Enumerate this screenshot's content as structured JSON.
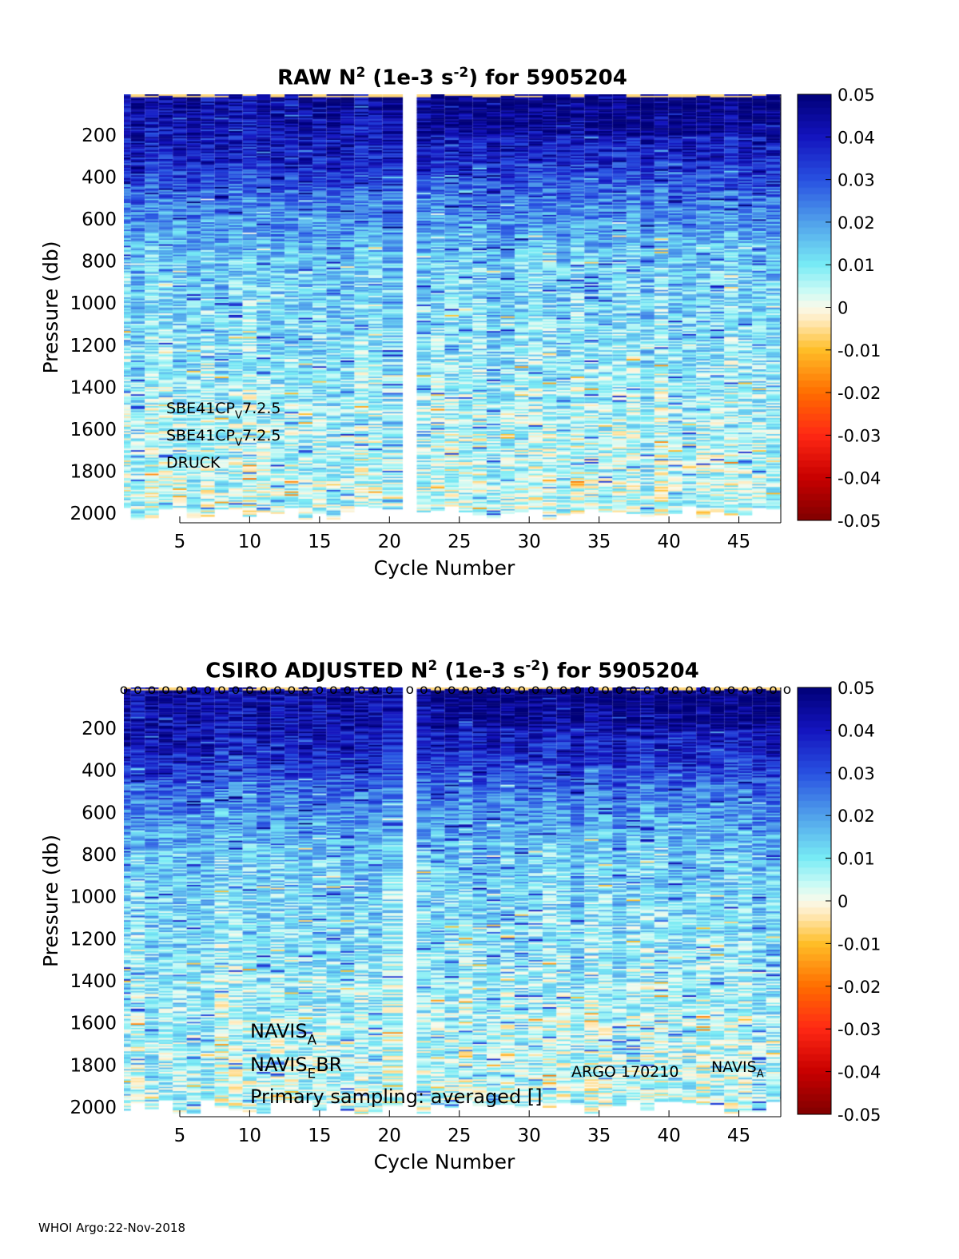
{
  "footer": "WHOI Argo:22-Nov-2018",
  "chart_data": [
    {
      "type": "heatmap",
      "title": "RAW N² (1e-3 s⁻²) for 5905204",
      "title_parts": {
        "main": "RAW N",
        "sup1": "2",
        "mid": " (1e-3 s",
        "sup2": "-2",
        "end": ") for 5905204"
      },
      "xlabel": "Cycle Number",
      "ylabel": "Pressure (db)",
      "xlim": [
        1,
        48
      ],
      "ylim": [
        2034,
        6
      ],
      "y_reversed": true,
      "xticks": [
        5,
        10,
        15,
        20,
        25,
        30,
        35,
        40,
        45
      ],
      "yticks": [
        200,
        400,
        600,
        800,
        1000,
        1200,
        1400,
        1600,
        1800,
        2000
      ],
      "missing_cycles": [
        21
      ],
      "clim": [
        -0.05,
        0.05
      ],
      "colorbar_ticks": [
        "0.05",
        "0.04",
        "0.03",
        "0.02",
        "0.01",
        "0",
        "-0.01",
        "-0.02",
        "-0.03",
        "-0.04",
        "-0.05"
      ],
      "approx_profile": {
        "pressure": [
          20,
          100,
          300,
          500,
          800,
          1200,
          1600,
          2000
        ],
        "n2": [
          0.045,
          0.042,
          0.038,
          0.025,
          0.014,
          0.01,
          0.006,
          0.004
        ]
      },
      "annotations": [
        {
          "main": "SBE41CP",
          "sub": "V",
          "end": "7.2.5"
        },
        {
          "main": "SBE41CP",
          "sub": "V",
          "end": "7.2.5"
        },
        {
          "main": "DRUCK",
          "sub": "",
          "end": ""
        }
      ],
      "markers": false
    },
    {
      "type": "heatmap",
      "title": "CSIRO  ADJUSTED N² (1e-3 s⁻²) for 5905204",
      "title_parts": {
        "main": "CSIRO  ADJUSTED N",
        "sup1": "2",
        "mid": " (1e-3 s",
        "sup2": "-2",
        "end": ") for 5905204"
      },
      "xlabel": "Cycle Number",
      "ylabel": "Pressure (db)",
      "xlim": [
        1,
        48
      ],
      "ylim": [
        2034,
        6
      ],
      "y_reversed": true,
      "xticks": [
        5,
        10,
        15,
        20,
        25,
        30,
        35,
        40,
        45
      ],
      "yticks": [
        200,
        400,
        600,
        800,
        1000,
        1200,
        1400,
        1600,
        1800,
        2000
      ],
      "missing_cycles": [
        21
      ],
      "clim": [
        -0.05,
        0.05
      ],
      "colorbar_ticks": [
        "0.05",
        "0.04",
        "0.03",
        "0.02",
        "0.01",
        "0",
        "-0.01",
        "-0.02",
        "-0.03",
        "-0.04",
        "-0.05"
      ],
      "approx_profile": {
        "pressure": [
          20,
          100,
          300,
          500,
          800,
          1200,
          1600,
          2000
        ],
        "n2": [
          0.045,
          0.042,
          0.038,
          0.025,
          0.014,
          0.01,
          0.006,
          0.004
        ]
      },
      "annotations": [
        {
          "main": "NAVIS",
          "sub": "A",
          "end": ""
        },
        {
          "main": "NAVIS",
          "sub": "E",
          "end": "BR"
        },
        {
          "main": "Primary sampling: averaged []",
          "sub": "",
          "end": ""
        }
      ],
      "right_annotations": [
        {
          "main": "ARGO 170210",
          "sub": "",
          "end": ""
        },
        {
          "main": "NAVIS",
          "sub": "A",
          "end": ""
        }
      ],
      "markers": true,
      "marker_symbol": "o"
    }
  ]
}
